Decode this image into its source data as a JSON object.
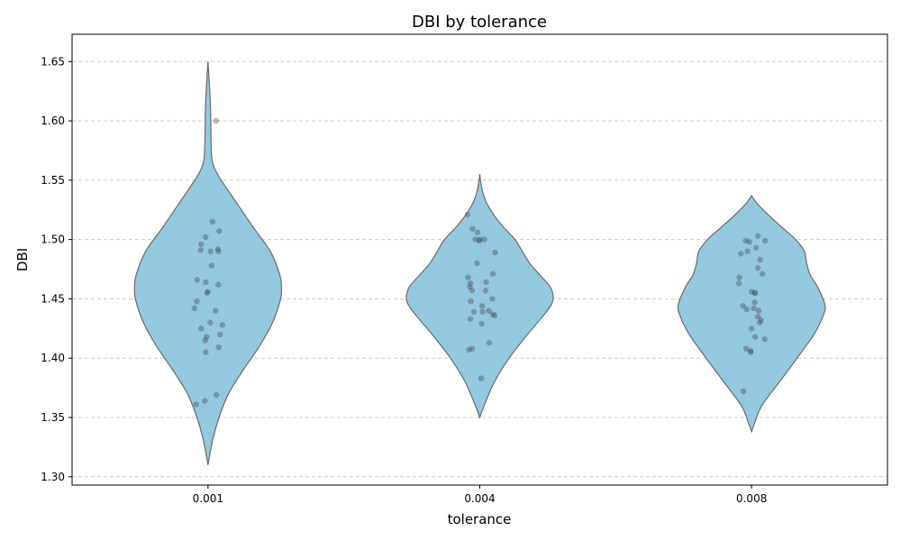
{
  "chart_data": {
    "type": "violin",
    "title": "DBI by tolerance",
    "xlabel": "tolerance",
    "ylabel": "DBI",
    "ylim": [
      1.293,
      1.673
    ],
    "yticks": [
      1.3,
      1.35,
      1.4,
      1.45,
      1.5,
      1.55,
      1.6,
      1.65
    ],
    "ytick_labels": [
      "1.30",
      "1.35",
      "1.40",
      "1.45",
      "1.50",
      "1.55",
      "1.60",
      "1.65"
    ],
    "grid": "y-dashed",
    "colors": {
      "violin_fill": "#92c9df",
      "violin_edge": "#6b6b6b",
      "points": "#444444",
      "grid": "#cccccc"
    },
    "categories": [
      "0.001",
      "0.004",
      "0.008"
    ],
    "series": [
      {
        "name": "0.001",
        "range": [
          1.31,
          1.65
        ],
        "density": [
          [
            1.31,
            0.0
          ],
          [
            1.33,
            0.06
          ],
          [
            1.35,
            0.15
          ],
          [
            1.37,
            0.28
          ],
          [
            1.39,
            0.48
          ],
          [
            1.41,
            0.7
          ],
          [
            1.43,
            0.88
          ],
          [
            1.45,
            0.99
          ],
          [
            1.46,
            1.0
          ],
          [
            1.47,
            0.98
          ],
          [
            1.49,
            0.85
          ],
          [
            1.51,
            0.62
          ],
          [
            1.53,
            0.4
          ],
          [
            1.55,
            0.18
          ],
          [
            1.56,
            0.09
          ],
          [
            1.57,
            0.05
          ],
          [
            1.59,
            0.04
          ],
          [
            1.61,
            0.035
          ],
          [
            1.63,
            0.02
          ],
          [
            1.645,
            0.005
          ],
          [
            1.65,
            0.0
          ]
        ],
        "points": [
          [
            1.6,
            0.18
          ],
          [
            1.515,
            0.1
          ],
          [
            1.507,
            0.25
          ],
          [
            1.502,
            -0.05
          ],
          [
            1.496,
            -0.15
          ],
          [
            1.492,
            0.22
          ],
          [
            1.491,
            -0.16
          ],
          [
            1.49,
            0.06
          ],
          [
            1.49,
            0.23
          ],
          [
            1.478,
            0.08
          ],
          [
            1.466,
            -0.24
          ],
          [
            1.464,
            -0.05
          ],
          [
            1.462,
            0.23
          ],
          [
            1.456,
            0.0
          ],
          [
            1.455,
            -0.02
          ],
          [
            1.448,
            -0.25
          ],
          [
            1.442,
            -0.3
          ],
          [
            1.44,
            0.17
          ],
          [
            1.43,
            0.05
          ],
          [
            1.428,
            0.32
          ],
          [
            1.425,
            -0.15
          ],
          [
            1.42,
            0.27
          ],
          [
            1.418,
            -0.03
          ],
          [
            1.415,
            -0.06
          ],
          [
            1.409,
            0.24
          ],
          [
            1.405,
            -0.05
          ],
          [
            1.369,
            0.19
          ],
          [
            1.364,
            -0.07
          ],
          [
            1.361,
            -0.26
          ]
        ]
      },
      {
        "name": "0.004",
        "range": [
          1.35,
          1.555
        ],
        "density": [
          [
            1.35,
            0.0
          ],
          [
            1.36,
            0.06
          ],
          [
            1.38,
            0.2
          ],
          [
            1.4,
            0.4
          ],
          [
            1.42,
            0.65
          ],
          [
            1.44,
            0.92
          ],
          [
            1.45,
            1.0
          ],
          [
            1.46,
            0.96
          ],
          [
            1.47,
            0.82
          ],
          [
            1.48,
            0.68
          ],
          [
            1.49,
            0.58
          ],
          [
            1.5,
            0.48
          ],
          [
            1.51,
            0.33
          ],
          [
            1.52,
            0.2
          ],
          [
            1.53,
            0.1
          ],
          [
            1.54,
            0.04
          ],
          [
            1.55,
            0.01
          ],
          [
            1.555,
            0.0
          ]
        ],
        "points": [
          [
            1.521,
            -0.27
          ],
          [
            1.509,
            -0.16
          ],
          [
            1.506,
            -0.05
          ],
          [
            1.5,
            0.1
          ],
          [
            1.5,
            -0.1
          ],
          [
            1.5,
            0.0
          ],
          [
            1.499,
            -0.01
          ],
          [
            1.489,
            0.34
          ],
          [
            1.48,
            -0.06
          ],
          [
            1.471,
            0.29
          ],
          [
            1.468,
            -0.26
          ],
          [
            1.464,
            0.14
          ],
          [
            1.463,
            -0.21
          ],
          [
            1.46,
            -0.22
          ],
          [
            1.457,
            -0.17
          ],
          [
            1.457,
            0.13
          ],
          [
            1.45,
            0.28
          ],
          [
            1.448,
            -0.2
          ],
          [
            1.444,
            0.05
          ],
          [
            1.44,
            0.2
          ],
          [
            1.439,
            -0.13
          ],
          [
            1.439,
            0.06
          ],
          [
            1.437,
            0.29
          ],
          [
            1.436,
            0.33
          ],
          [
            1.433,
            -0.21
          ],
          [
            1.429,
            0.04
          ],
          [
            1.413,
            0.21
          ],
          [
            1.408,
            -0.17
          ],
          [
            1.407,
            -0.24
          ],
          [
            1.383,
            0.03
          ]
        ]
      },
      {
        "name": "0.008",
        "range": [
          1.338,
          1.537
        ],
        "density": [
          [
            1.338,
            0.0
          ],
          [
            1.345,
            0.04
          ],
          [
            1.36,
            0.14
          ],
          [
            1.38,
            0.38
          ],
          [
            1.4,
            0.62
          ],
          [
            1.42,
            0.85
          ],
          [
            1.435,
            0.97
          ],
          [
            1.445,
            1.0
          ],
          [
            1.46,
            0.9
          ],
          [
            1.47,
            0.8
          ],
          [
            1.48,
            0.75
          ],
          [
            1.49,
            0.72
          ],
          [
            1.5,
            0.6
          ],
          [
            1.51,
            0.42
          ],
          [
            1.52,
            0.24
          ],
          [
            1.53,
            0.08
          ],
          [
            1.537,
            0.0
          ]
        ],
        "points": [
          [
            1.503,
            0.14
          ],
          [
            1.499,
            -0.13
          ],
          [
            1.499,
            0.3
          ],
          [
            1.498,
            -0.05
          ],
          [
            1.493,
            0.1
          ],
          [
            1.49,
            -0.09
          ],
          [
            1.488,
            -0.24
          ],
          [
            1.483,
            0.19
          ],
          [
            1.476,
            0.14
          ],
          [
            1.471,
            0.24
          ],
          [
            1.468,
            -0.27
          ],
          [
            1.463,
            -0.28
          ],
          [
            1.456,
            0.0
          ],
          [
            1.455,
            0.07
          ],
          [
            1.455,
            0.08
          ],
          [
            1.447,
            0.07
          ],
          [
            1.444,
            -0.19
          ],
          [
            1.441,
            -0.11
          ],
          [
            1.44,
            0.16
          ],
          [
            1.442,
            0.05
          ],
          [
            1.435,
            0.14
          ],
          [
            1.432,
            0.21
          ],
          [
            1.43,
            0.18
          ],
          [
            1.425,
            0.0
          ],
          [
            1.418,
            0.08
          ],
          [
            1.416,
            0.29
          ],
          [
            1.408,
            -0.12
          ],
          [
            1.406,
            -0.02
          ],
          [
            1.405,
            -0.02
          ],
          [
            1.372,
            -0.18
          ]
        ]
      }
    ]
  }
}
